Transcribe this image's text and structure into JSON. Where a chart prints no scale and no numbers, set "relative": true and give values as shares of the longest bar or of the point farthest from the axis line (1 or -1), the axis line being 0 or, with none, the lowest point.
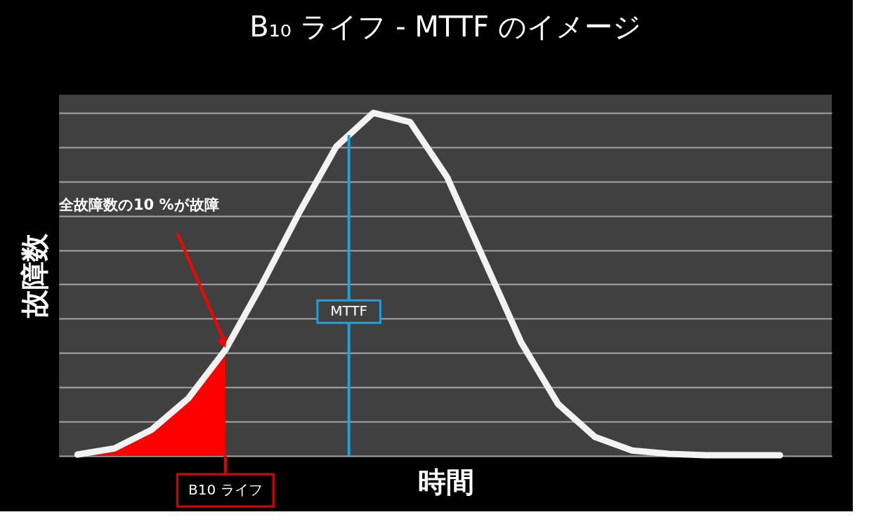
{
  "chart_data": {
    "type": "line",
    "title": "B₁₀ ライフ - MTTF のイメージ",
    "xlabel": "時間",
    "ylabel": "故障数",
    "relative": true,
    "grid": "y",
    "tick_labels": false,
    "categories": [
      null,
      null,
      null,
      null,
      null,
      null,
      null,
      null,
      null,
      null,
      null,
      null,
      null,
      null,
      null,
      null,
      null,
      null,
      null,
      null
    ],
    "series": [
      {
        "type": "area",
        "color": "#ff0000",
        "values": [
          0.004,
          0.022,
          0.076,
          0.168,
          0.309,
          null,
          null,
          null,
          null,
          null,
          null,
          null,
          null,
          null,
          null,
          null,
          null,
          null,
          null,
          null
        ]
      },
      {
        "color": "#f2f2f2",
        "values": [
          0.004,
          0.022,
          0.076,
          0.168,
          0.309,
          0.503,
          0.71,
          0.902,
          1,
          0.973,
          0.812,
          0.571,
          0.331,
          0.151,
          0.055,
          0.016,
          0.006,
          0.002,
          0.002,
          0.002
        ]
      }
    ],
    "annotations": [
      "全故障数の10 %が故障",
      "MTTF",
      "B10 ライフ"
    ]
  }
}
